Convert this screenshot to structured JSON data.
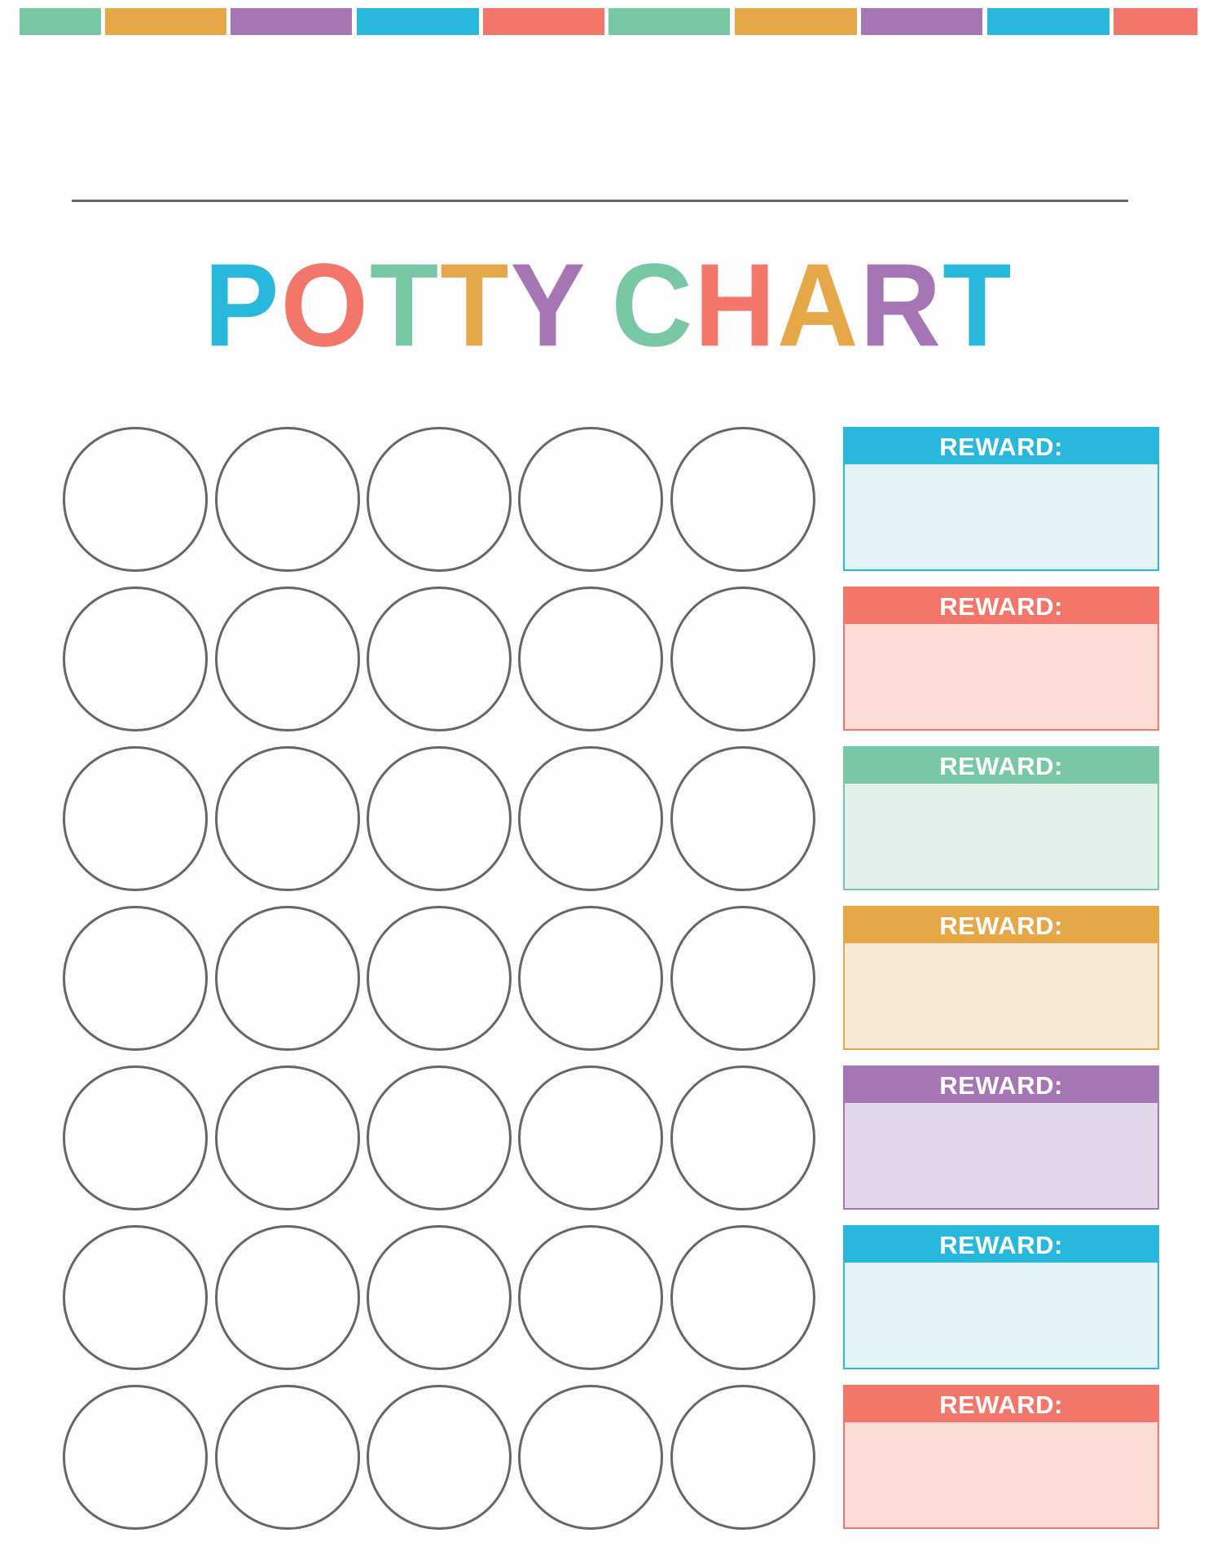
{
  "colors": {
    "green": "#78C8A6",
    "orange": "#E5A747",
    "purple": "#A675B3",
    "blue": "#27B8DB",
    "red": "#F3766A"
  },
  "top_bar_colors": [
    "#78C8A6",
    "#E5A747",
    "#A675B3",
    "#27B8DB",
    "#F3766A",
    "#78C8A6",
    "#E5A747",
    "#A675B3",
    "#27B8DB",
    "#F3766A"
  ],
  "name_line": "",
  "title": {
    "text": "POTTY CHART",
    "letters": [
      {
        "ch": "P",
        "color": "#27B8DB"
      },
      {
        "ch": "O",
        "color": "#F3766A"
      },
      {
        "ch": "T",
        "color": "#78C8A6"
      },
      {
        "ch": "T",
        "color": "#E5A747"
      },
      {
        "ch": "Y",
        "color": "#A675B3"
      },
      {
        "ch": " ",
        "color": "#000000"
      },
      {
        "ch": "C",
        "color": "#78C8A6"
      },
      {
        "ch": "H",
        "color": "#F3766A"
      },
      {
        "ch": "A",
        "color": "#E5A747"
      },
      {
        "ch": "R",
        "color": "#A675B3"
      },
      {
        "ch": "T",
        "color": "#27B8DB"
      }
    ]
  },
  "grid": {
    "rows": 7,
    "circles_per_row": 5
  },
  "rewards": [
    {
      "label": "REWARD:",
      "color": "#27B8DB",
      "fill": "#E3F3F8",
      "value": ""
    },
    {
      "label": "REWARD:",
      "color": "#F3766A",
      "fill": "#FBDDD5",
      "value": ""
    },
    {
      "label": "REWARD:",
      "color": "#78C8A6",
      "fill": "#E2F2EA",
      "value": ""
    },
    {
      "label": "REWARD:",
      "color": "#E5A747",
      "fill": "#F9EAD8",
      "value": ""
    },
    {
      "label": "REWARD:",
      "color": "#A675B3",
      "fill": "#E4D6EA",
      "value": ""
    },
    {
      "label": "REWARD:",
      "color": "#27B8DB",
      "fill": "#E3F3F8",
      "value": ""
    },
    {
      "label": "REWARD:",
      "color": "#F3766A",
      "fill": "#FBDDD5",
      "value": ""
    }
  ]
}
